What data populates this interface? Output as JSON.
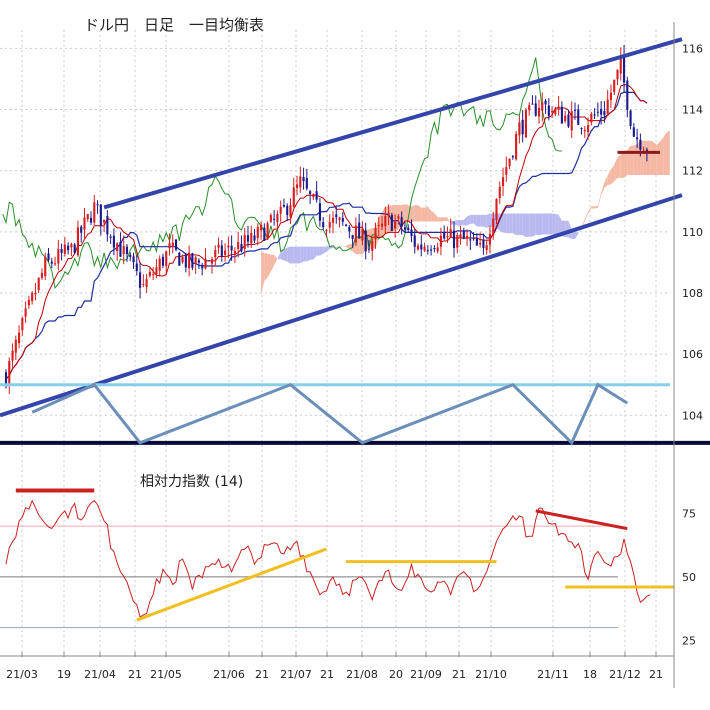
{
  "chart_data": [
    {
      "type": "candlestick",
      "title": "ドル円　日足　一目均衡表",
      "ylim": [
        102.8,
        116.6
      ],
      "y_ticks": [
        104,
        106,
        108,
        110,
        112,
        114,
        116
      ],
      "y_tick_labels": [
        "104",
        "106",
        "108",
        "110",
        "112",
        "114",
        "116"
      ],
      "x_tick_labels": [
        "21/03",
        "19",
        "21/04",
        "21",
        "21/05",
        "21/06",
        "21",
        "21/07",
        "21",
        "21/08",
        "20",
        "21/09",
        "21",
        "21/10",
        "21/11",
        "18",
        "21/12",
        "21"
      ],
      "close_keypoints": [
        {
          "x": 0,
          "y": 105.3
        },
        {
          "x": 6,
          "y": 107.2
        },
        {
          "x": 12,
          "y": 108.9
        },
        {
          "x": 20,
          "y": 109.4
        },
        {
          "x": 27,
          "y": 110.8
        },
        {
          "x": 33,
          "y": 109.8
        },
        {
          "x": 42,
          "y": 108.2
        },
        {
          "x": 50,
          "y": 109.4
        },
        {
          "x": 57,
          "y": 108.9
        },
        {
          "x": 66,
          "y": 109.3
        },
        {
          "x": 75,
          "y": 109.7
        },
        {
          "x": 84,
          "y": 110.5
        },
        {
          "x": 90,
          "y": 111.6
        },
        {
          "x": 97,
          "y": 110.4
        },
        {
          "x": 104,
          "y": 110.2
        },
        {
          "x": 111,
          "y": 109.6
        },
        {
          "x": 117,
          "y": 110.4
        },
        {
          "x": 121,
          "y": 110.2
        },
        {
          "x": 126,
          "y": 109.5
        },
        {
          "x": 133,
          "y": 109.8
        },
        {
          "x": 141,
          "y": 109.7
        },
        {
          "x": 146,
          "y": 109.3
        },
        {
          "x": 150,
          "y": 111.2
        },
        {
          "x": 157,
          "y": 113.4
        },
        {
          "x": 163,
          "y": 114.2
        },
        {
          "x": 170,
          "y": 113.8
        },
        {
          "x": 177,
          "y": 113.6
        },
        {
          "x": 183,
          "y": 114.0
        },
        {
          "x": 188,
          "y": 115.4
        },
        {
          "x": 192,
          "y": 113.2
        },
        {
          "x": 196,
          "y": 112.8
        }
      ],
      "ichimoku": {
        "cloud_color_bullish": "#f4b8a4",
        "cloud_color_bearish": "#b9b9f0",
        "tenkan_color": "#c00000",
        "kijun_color": "#1f2fa0",
        "chikou_color": "#2a8f2a"
      },
      "trend_channel": {
        "color": "#3344aa",
        "upper_start": 110.8,
        "upper_end": 116.3,
        "lower_start": 104.0,
        "lower_end": 111.2
      },
      "support_line": {
        "value": 112.6,
        "color": "#8b1a1a"
      },
      "scale_colors": {
        "bull": "#d81e1e",
        "bear": "#1a1a8c"
      }
    },
    {
      "type": "line",
      "title": "相対力指数 (14)",
      "ylim": [
        22,
        85
      ],
      "y_ticks": [
        25,
        50,
        75
      ],
      "y_tick_labels": [
        "25",
        "50",
        "75"
      ],
      "ref_lines": [
        {
          "value": 70,
          "color": "#f0b0b0"
        },
        {
          "value": 50,
          "color": "#7a7a7a"
        },
        {
          "value": 30,
          "color": "#90a8c0"
        }
      ],
      "series": [
        {
          "color": "#cc2222",
          "points": [
            {
              "x": 0,
              "y": 55
            },
            {
              "x": 4,
              "y": 72
            },
            {
              "x": 8,
              "y": 80
            },
            {
              "x": 12,
              "y": 71
            },
            {
              "x": 16,
              "y": 73
            },
            {
              "x": 20,
              "y": 77
            },
            {
              "x": 24,
              "y": 74
            },
            {
              "x": 27,
              "y": 80
            },
            {
              "x": 30,
              "y": 72
            },
            {
              "x": 33,
              "y": 60
            },
            {
              "x": 37,
              "y": 48
            },
            {
              "x": 40,
              "y": 39
            },
            {
              "x": 42,
              "y": 35
            },
            {
              "x": 45,
              "y": 43
            },
            {
              "x": 48,
              "y": 53
            },
            {
              "x": 51,
              "y": 47
            },
            {
              "x": 54,
              "y": 57
            },
            {
              "x": 57,
              "y": 45
            },
            {
              "x": 61,
              "y": 54
            },
            {
              "x": 65,
              "y": 57
            },
            {
              "x": 69,
              "y": 52
            },
            {
              "x": 73,
              "y": 61
            },
            {
              "x": 77,
              "y": 57
            },
            {
              "x": 81,
              "y": 63
            },
            {
              "x": 85,
              "y": 59
            },
            {
              "x": 89,
              "y": 64
            },
            {
              "x": 93,
              "y": 52
            },
            {
              "x": 96,
              "y": 43
            },
            {
              "x": 100,
              "y": 50
            },
            {
              "x": 104,
              "y": 44
            },
            {
              "x": 108,
              "y": 50
            },
            {
              "x": 112,
              "y": 41
            },
            {
              "x": 116,
              "y": 52
            },
            {
              "x": 120,
              "y": 45
            },
            {
              "x": 124,
              "y": 55
            },
            {
              "x": 128,
              "y": 46
            },
            {
              "x": 132,
              "y": 48
            },
            {
              "x": 136,
              "y": 43
            },
            {
              "x": 140,
              "y": 52
            },
            {
              "x": 144,
              "y": 45
            },
            {
              "x": 147,
              "y": 52
            },
            {
              "x": 150,
              "y": 64
            },
            {
              "x": 154,
              "y": 72
            },
            {
              "x": 157,
              "y": 74
            },
            {
              "x": 160,
              "y": 66
            },
            {
              "x": 164,
              "y": 77
            },
            {
              "x": 168,
              "y": 71
            },
            {
              "x": 172,
              "y": 64
            },
            {
              "x": 176,
              "y": 60
            },
            {
              "x": 178,
              "y": 49
            },
            {
              "x": 181,
              "y": 60
            },
            {
              "x": 184,
              "y": 55
            },
            {
              "x": 187,
              "y": 58
            },
            {
              "x": 189,
              "y": 65
            },
            {
              "x": 191,
              "y": 56
            },
            {
              "x": 193,
              "y": 44
            },
            {
              "x": 195,
              "y": 41
            },
            {
              "x": 197,
              "y": 43
            }
          ]
        }
      ],
      "annotations": [
        {
          "type": "bearish_divergence",
          "color": "#cc2222",
          "from": 76,
          "to": 69
        },
        {
          "type": "support_rising",
          "color": "#f0c020",
          "from": 33,
          "to": 61
        },
        {
          "type": "level",
          "color": "#f0c020",
          "value": 56
        },
        {
          "type": "level",
          "color": "#f0c020",
          "value": 46
        }
      ]
    }
  ],
  "zigzag": {
    "color": "#6b8fb8",
    "level_top": 105.0,
    "level_bottom": 103.1,
    "top_color": "#87ceeb",
    "bottom_color": "#0a0a3a"
  }
}
